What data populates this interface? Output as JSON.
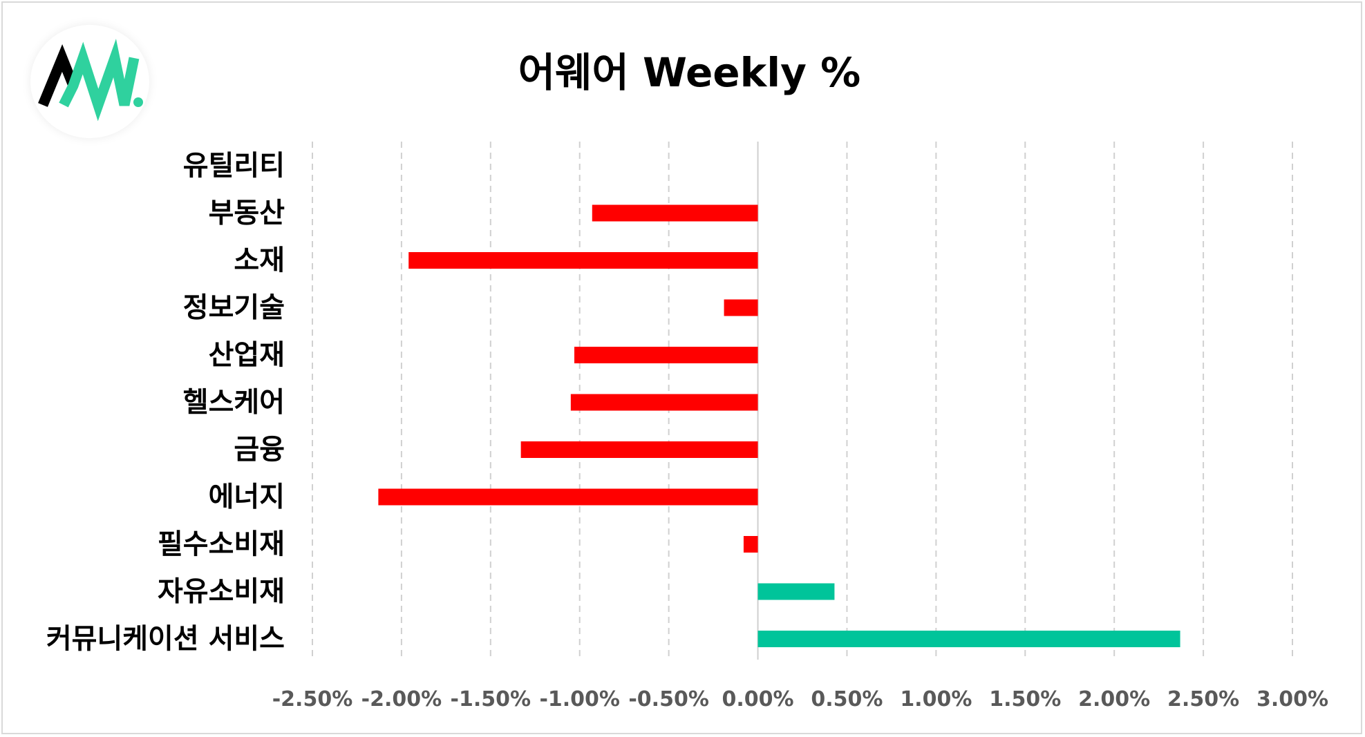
{
  "logo": {
    "letters": "AW.",
    "colors": {
      "dark": "#000000",
      "accent": "#2fd19e"
    }
  },
  "chart_data": {
    "type": "bar",
    "orientation": "horizontal",
    "title": "어웨어 Weekly %",
    "categories": [
      "유틸리티",
      "부동산",
      "소재",
      "정보기술",
      "산업재",
      "헬스케어",
      "금융",
      "에너지",
      "필수소비재",
      "자유소비재",
      "커뮤니케이션 서비스"
    ],
    "values": [
      0.0,
      -0.93,
      -1.96,
      -0.19,
      -1.03,
      -1.05,
      -1.33,
      -2.13,
      -0.08,
      0.43,
      2.37
    ],
    "unit": "%",
    "xlim": [
      -2.5,
      3.0
    ],
    "xticks": [
      -2.5,
      -2.0,
      -1.5,
      -1.0,
      -0.5,
      0.0,
      0.5,
      1.0,
      1.5,
      2.0,
      2.5,
      3.0
    ],
    "xtick_labels": [
      "-2.50%",
      "-2.00%",
      "-1.50%",
      "-1.00%",
      "-0.50%",
      "0.00%",
      "0.50%",
      "1.00%",
      "1.50%",
      "2.00%",
      "2.50%",
      "3.00%"
    ],
    "grid": "vertical-dashed",
    "legend": "none",
    "colors": {
      "negative": "#ff0000",
      "positive": "#00c49a"
    }
  }
}
